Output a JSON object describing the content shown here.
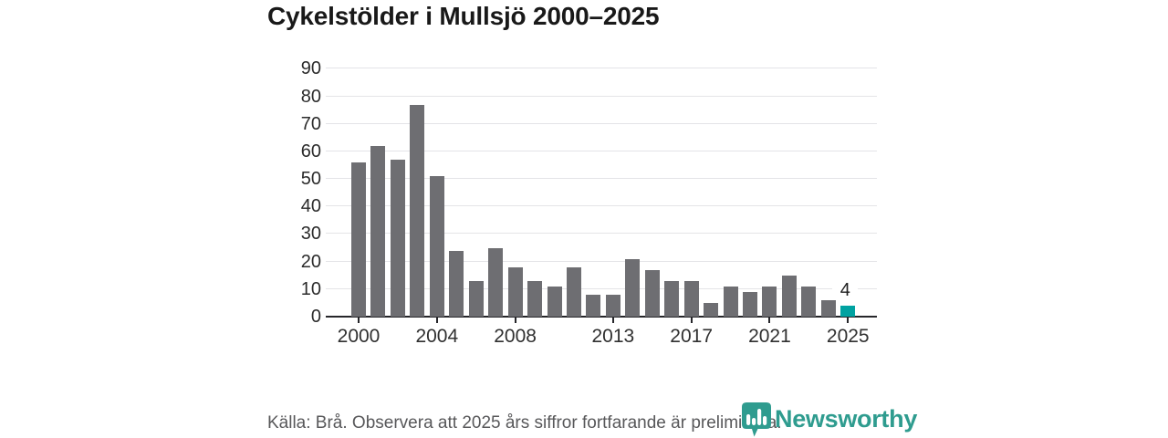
{
  "title": "Cykelstölder i Mullsjö 2000–2025",
  "footer": {
    "source_text": "Källa: Brå. Observera att 2025 års siffror fortfarande är preliminära.",
    "logo_text": "Newsworthy"
  },
  "colors": {
    "bar": "#6e6e72",
    "highlight": "#00a2a1",
    "logo": "#2f9c8f",
    "gridline": "#e4e4e7",
    "axis": "#26262a"
  },
  "chart_data": {
    "type": "bar",
    "title": "Cykelstölder i Mullsjö 2000–2025",
    "x": [
      2000,
      2001,
      2002,
      2003,
      2004,
      2005,
      2006,
      2007,
      2008,
      2009,
      2010,
      2011,
      2012,
      2013,
      2014,
      2015,
      2016,
      2017,
      2018,
      2019,
      2020,
      2021,
      2022,
      2023,
      2024,
      2025
    ],
    "values": [
      56,
      62,
      57,
      77,
      51,
      24,
      13,
      25,
      18,
      13,
      11,
      18,
      8,
      8,
      21,
      17,
      13,
      13,
      5,
      11,
      9,
      11,
      15,
      11,
      6,
      4
    ],
    "xlabel": "",
    "ylabel": "",
    "ylim": [
      0,
      90
    ],
    "y_ticks": [
      0,
      10,
      20,
      30,
      40,
      50,
      60,
      70,
      80,
      90
    ],
    "x_tick_labels": [
      "2000",
      "2004",
      "2008",
      "2013",
      "2017",
      "2021",
      "2025"
    ],
    "grid": true,
    "legend": "none",
    "highlight_year": 2025,
    "annotation": {
      "text": "4",
      "year": 2025
    }
  }
}
